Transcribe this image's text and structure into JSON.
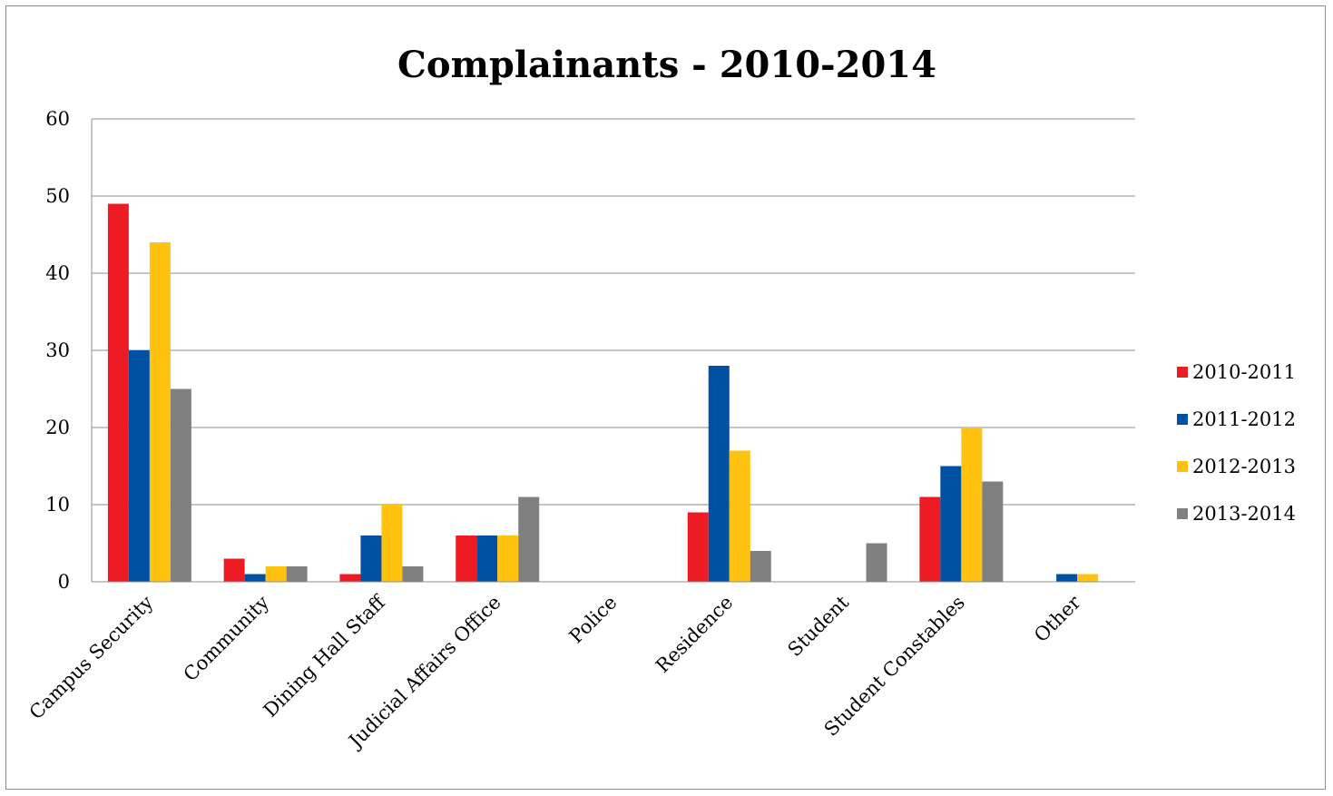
{
  "chart_data": {
    "type": "bar",
    "title": "Complainants - 2010-2014",
    "xlabel": "",
    "ylabel": "",
    "ylim": [
      0,
      60
    ],
    "yticks": [
      0,
      10,
      20,
      30,
      40,
      50,
      60
    ],
    "grid": true,
    "legend_position": "right",
    "categories": [
      "Campus Security",
      "Community",
      "Dining Hall Staff",
      "Judicial Affairs Office",
      "Police",
      "Residence",
      "Student",
      "Student Constables",
      "Other"
    ],
    "series": [
      {
        "name": "2010-2011",
        "color": "#ed1c24",
        "values": [
          49,
          3,
          1,
          6,
          0,
          9,
          0,
          11,
          0
        ]
      },
      {
        "name": "2011-2012",
        "color": "#0050a4",
        "values": [
          30,
          1,
          6,
          6,
          0,
          28,
          0,
          15,
          1
        ]
      },
      {
        "name": "2012-2013",
        "color": "#ffc20e",
        "values": [
          44,
          2,
          10,
          6,
          0,
          17,
          0,
          20,
          1
        ]
      },
      {
        "name": "2013-2014",
        "color": "#808080",
        "values": [
          25,
          2,
          2,
          11,
          0,
          4,
          5,
          13,
          0
        ]
      }
    ]
  }
}
